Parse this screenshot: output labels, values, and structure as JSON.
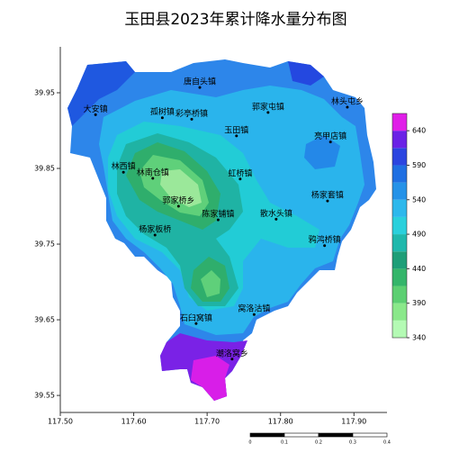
{
  "title": "玉田县2023年累计降水量分布图",
  "xticks": [
    {
      "value": 117.5,
      "label": "117.50"
    },
    {
      "value": 117.6,
      "label": "117.60"
    },
    {
      "value": 117.7,
      "label": "117.70"
    },
    {
      "value": 117.8,
      "label": "117.80"
    },
    {
      "value": 117.9,
      "label": "117.90"
    }
  ],
  "yticks": [
    {
      "value": 39.95,
      "label": "39.95"
    },
    {
      "value": 39.85,
      "label": "39.85"
    },
    {
      "value": 39.75,
      "label": "39.75"
    },
    {
      "value": 39.65,
      "label": "39.65"
    },
    {
      "value": 39.55,
      "label": "39.55"
    }
  ],
  "xlim": [
    117.5,
    117.945
  ],
  "ylim": [
    39.5275,
    40.0107
  ],
  "towns": [
    {
      "name": "唐自头镇",
      "lon": 117.69,
      "lat": 39.957
    },
    {
      "name": "大安镇",
      "lon": 117.548,
      "lat": 39.921
    },
    {
      "name": "孤树镇",
      "lon": 117.639,
      "lat": 39.917
    },
    {
      "name": "彩亭桥镇",
      "lon": 117.679,
      "lat": 39.915
    },
    {
      "name": "郭家屯镇",
      "lon": 117.783,
      "lat": 39.924
    },
    {
      "name": "林头屯乡",
      "lon": 117.891,
      "lat": 39.931
    },
    {
      "name": "玉田镇",
      "lon": 117.74,
      "lat": 39.893
    },
    {
      "name": "亮甲店镇",
      "lon": 117.868,
      "lat": 39.885
    },
    {
      "name": "林西镇",
      "lon": 117.586,
      "lat": 39.845
    },
    {
      "name": "林南仓镇",
      "lon": 117.626,
      "lat": 39.837
    },
    {
      "name": "虹桥镇",
      "lon": 117.745,
      "lat": 39.836
    },
    {
      "name": "郭家桥乡",
      "lon": 117.661,
      "lat": 39.8
    },
    {
      "name": "杨家套镇",
      "lon": 117.864,
      "lat": 39.807
    },
    {
      "name": "陈家铺镇",
      "lon": 117.715,
      "lat": 39.782
    },
    {
      "name": "散水头镇",
      "lon": 117.794,
      "lat": 39.783
    },
    {
      "name": "杨家板桥",
      "lon": 117.629,
      "lat": 39.762
    },
    {
      "name": "鸦鸿桥镇",
      "lon": 117.86,
      "lat": 39.748
    },
    {
      "name": "窝洛沽镇",
      "lon": 117.764,
      "lat": 39.657
    },
    {
      "name": "石臼窝镇",
      "lon": 117.685,
      "lat": 39.645
    },
    {
      "name": "潮洛窝乡",
      "lon": 117.734,
      "lat": 39.598
    }
  ],
  "colorbar": {
    "lim": [
      340,
      665
    ],
    "ticks": [
      640,
      590,
      540,
      490,
      440,
      390,
      340
    ],
    "colors": [
      "#b4fab4",
      "#8ae88a",
      "#5ccf72",
      "#34b56a",
      "#1e9e78",
      "#1fb8ac",
      "#2ad0dc",
      "#2db8ec",
      "#2592e8",
      "#1f6fe2",
      "#2b45e0",
      "#6a22e6",
      "#e01ee8"
    ]
  },
  "scale_bar": {
    "labels": [
      "0",
      "0.1",
      "0.2",
      "0.3",
      "0.4"
    ]
  }
}
